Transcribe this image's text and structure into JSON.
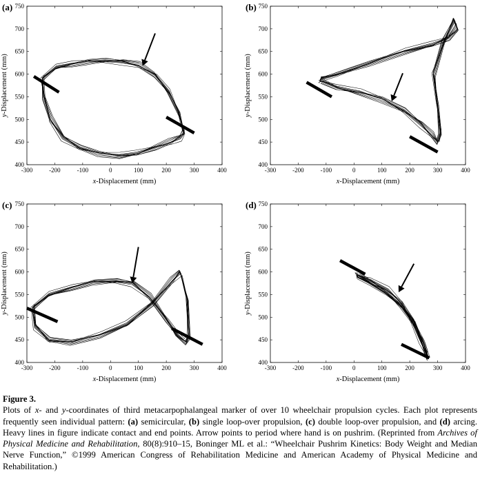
{
  "figure": {
    "panels": [
      {
        "id": "a",
        "label": "(a)",
        "pattern": "semicircular"
      },
      {
        "id": "b",
        "label": "(b)",
        "pattern": "single loop-over propulsion"
      },
      {
        "id": "c",
        "label": "(c)",
        "pattern": "double loop-over propulsion"
      },
      {
        "id": "d",
        "label": "(d)",
        "pattern": "arcing"
      }
    ],
    "x_axis_label_var": "x",
    "x_axis_label_rest": "-Displacement (mm)",
    "y_axis_label_var": "y",
    "y_axis_label_rest": "-Displacement (mm)"
  },
  "chart_data": [
    {
      "type": "line",
      "panel": "(a)",
      "xlim": [
        -300,
        400
      ],
      "ylim": [
        400,
        750
      ],
      "x_ticks": [
        -300,
        -200,
        -100,
        0,
        100,
        200,
        300,
        400
      ],
      "y_ticks": [
        400,
        450,
        500,
        550,
        600,
        650,
        700,
        750
      ],
      "xlabel": "x-Displacement (mm)",
      "ylabel": "y-Displacement (mm)",
      "path": {
        "x": [
          -245,
          -195,
          -140,
          -80,
          -20,
          40,
          100,
          160,
          210,
          245,
          258,
          262,
          248,
          215,
          160,
          95,
          30,
          -40,
          -110,
          -170,
          -215,
          -240,
          -245
        ],
        "y": [
          590,
          615,
          622,
          628,
          630,
          628,
          620,
          598,
          560,
          515,
          485,
          470,
          460,
          450,
          438,
          425,
          420,
          425,
          438,
          460,
          500,
          550,
          590
        ]
      },
      "contact_line": {
        "x": [
          -275,
          -185
        ],
        "y": [
          595,
          560
        ]
      },
      "end_line": {
        "x": [
          200,
          300
        ],
        "y": [
          505,
          470
        ]
      },
      "arrow": {
        "from": [
          160,
          690
        ],
        "to": [
          115,
          618
        ]
      }
    },
    {
      "type": "line",
      "panel": "(b)",
      "xlim": [
        -300,
        400
      ],
      "ylim": [
        400,
        750
      ],
      "x_ticks": [
        -300,
        -200,
        -100,
        0,
        100,
        200,
        300,
        400
      ],
      "y_ticks": [
        400,
        450,
        500,
        550,
        600,
        650,
        700,
        750
      ],
      "xlabel": "x-Displacement (mm)",
      "ylabel": "y-Displacement (mm)",
      "path": {
        "x": [
          -120,
          -60,
          20,
          100,
          180,
          240,
          280,
          300,
          310,
          300,
          285,
          320,
          360,
          370,
          340,
          280,
          180,
          60,
          -60,
          -120,
          -120
        ],
        "y": [
          585,
          570,
          560,
          545,
          520,
          490,
          465,
          450,
          470,
          530,
          600,
          670,
          720,
          700,
          680,
          665,
          650,
          625,
          600,
          590,
          585
        ]
      },
      "contact_line": {
        "x": [
          -170,
          -80
        ],
        "y": [
          582,
          550
        ]
      },
      "end_line": {
        "x": [
          200,
          300
        ],
        "y": [
          462,
          428
        ]
      },
      "arrow": {
        "from": [
          175,
          602
        ],
        "to": [
          135,
          540
        ]
      }
    },
    {
      "type": "line",
      "panel": "(c)",
      "xlim": [
        -300,
        400
      ],
      "ylim": [
        400,
        750
      ],
      "x_ticks": [
        -300,
        -200,
        -100,
        0,
        100,
        200,
        300,
        400
      ],
      "y_ticks": [
        400,
        450,
        500,
        550,
        600,
        650,
        700,
        750
      ],
      "xlabel": "x-Displacement (mm)",
      "ylabel": "y-Displacement (mm)",
      "path": {
        "x": [
          -280,
          -220,
          -140,
          -60,
          20,
          80,
          140,
          200,
          240,
          270,
          280,
          275,
          250,
          220,
          150,
          60,
          -40,
          -140,
          -220,
          -270,
          -280
        ],
        "y": [
          520,
          550,
          565,
          578,
          580,
          575,
          545,
          495,
          460,
          445,
          460,
          540,
          600,
          580,
          530,
          485,
          460,
          445,
          450,
          480,
          520
        ]
      },
      "contact_line": {
        "x": [
          -300,
          -190
        ],
        "y": [
          520,
          490
        ]
      },
      "end_line": {
        "x": [
          220,
          330
        ],
        "y": [
          475,
          440
        ]
      },
      "arrow": {
        "from": [
          100,
          655
        ],
        "to": [
          78,
          575
        ]
      }
    },
    {
      "type": "line",
      "panel": "(d)",
      "xlim": [
        -300,
        400
      ],
      "ylim": [
        400,
        750
      ],
      "x_ticks": [
        -300,
        -200,
        -100,
        0,
        100,
        200,
        300,
        400
      ],
      "y_ticks": [
        400,
        450,
        500,
        550,
        600,
        650,
        700,
        750
      ],
      "xlabel": "x-Displacement (mm)",
      "ylabel": "y-Displacement (mm)",
      "path": {
        "x": [
          15,
          60,
          120,
          170,
          210,
          240,
          258,
          265,
          250,
          215,
          170,
          110,
          50,
          10,
          15
        ],
        "y": [
          592,
          580,
          560,
          530,
          490,
          450,
          420,
          410,
          440,
          490,
          525,
          555,
          578,
          590,
          592
        ]
      },
      "contact_line": {
        "x": [
          -50,
          40
        ],
        "y": [
          625,
          595
        ]
      },
      "end_line": {
        "x": [
          170,
          270
        ],
        "y": [
          440,
          410
        ]
      },
      "arrow": {
        "from": [
          215,
          618
        ],
        "to": [
          160,
          555
        ]
      }
    }
  ],
  "caption": {
    "title": "Figure 3.",
    "t1": "Plots of ",
    "t2": "x",
    "t3": "- and ",
    "t4": "y",
    "t5": "-coordinates of third metacarpophalangeal marker of over 10 wheelchair propulsion cycles. Each plot represents frequently seen individual pattern: ",
    "la": "(a)",
    "ta": " semicircular, ",
    "lb": "(b)",
    "tb": " single loop-over propulsion, ",
    "lc": "(c)",
    "tc": " double loop-over propulsion, and ",
    "ld": "(d)",
    "td": " arcing. Heavy lines in figure indicate contact and end points. Arrow points to period where hand is on pushrim. (Reprinted from ",
    "journal": "Archives of Physical Medicine and Rehabilitation",
    "t6": ", 80(8):910–15, Boninger ML et al.: “Wheelchair Pushrim Kinetics: Body Weight and Median Nerve Function,” ©1999 American Congress of Rehabilitation Medicine and American Academy of Physical Medicine and Rehabilitation.)"
  }
}
